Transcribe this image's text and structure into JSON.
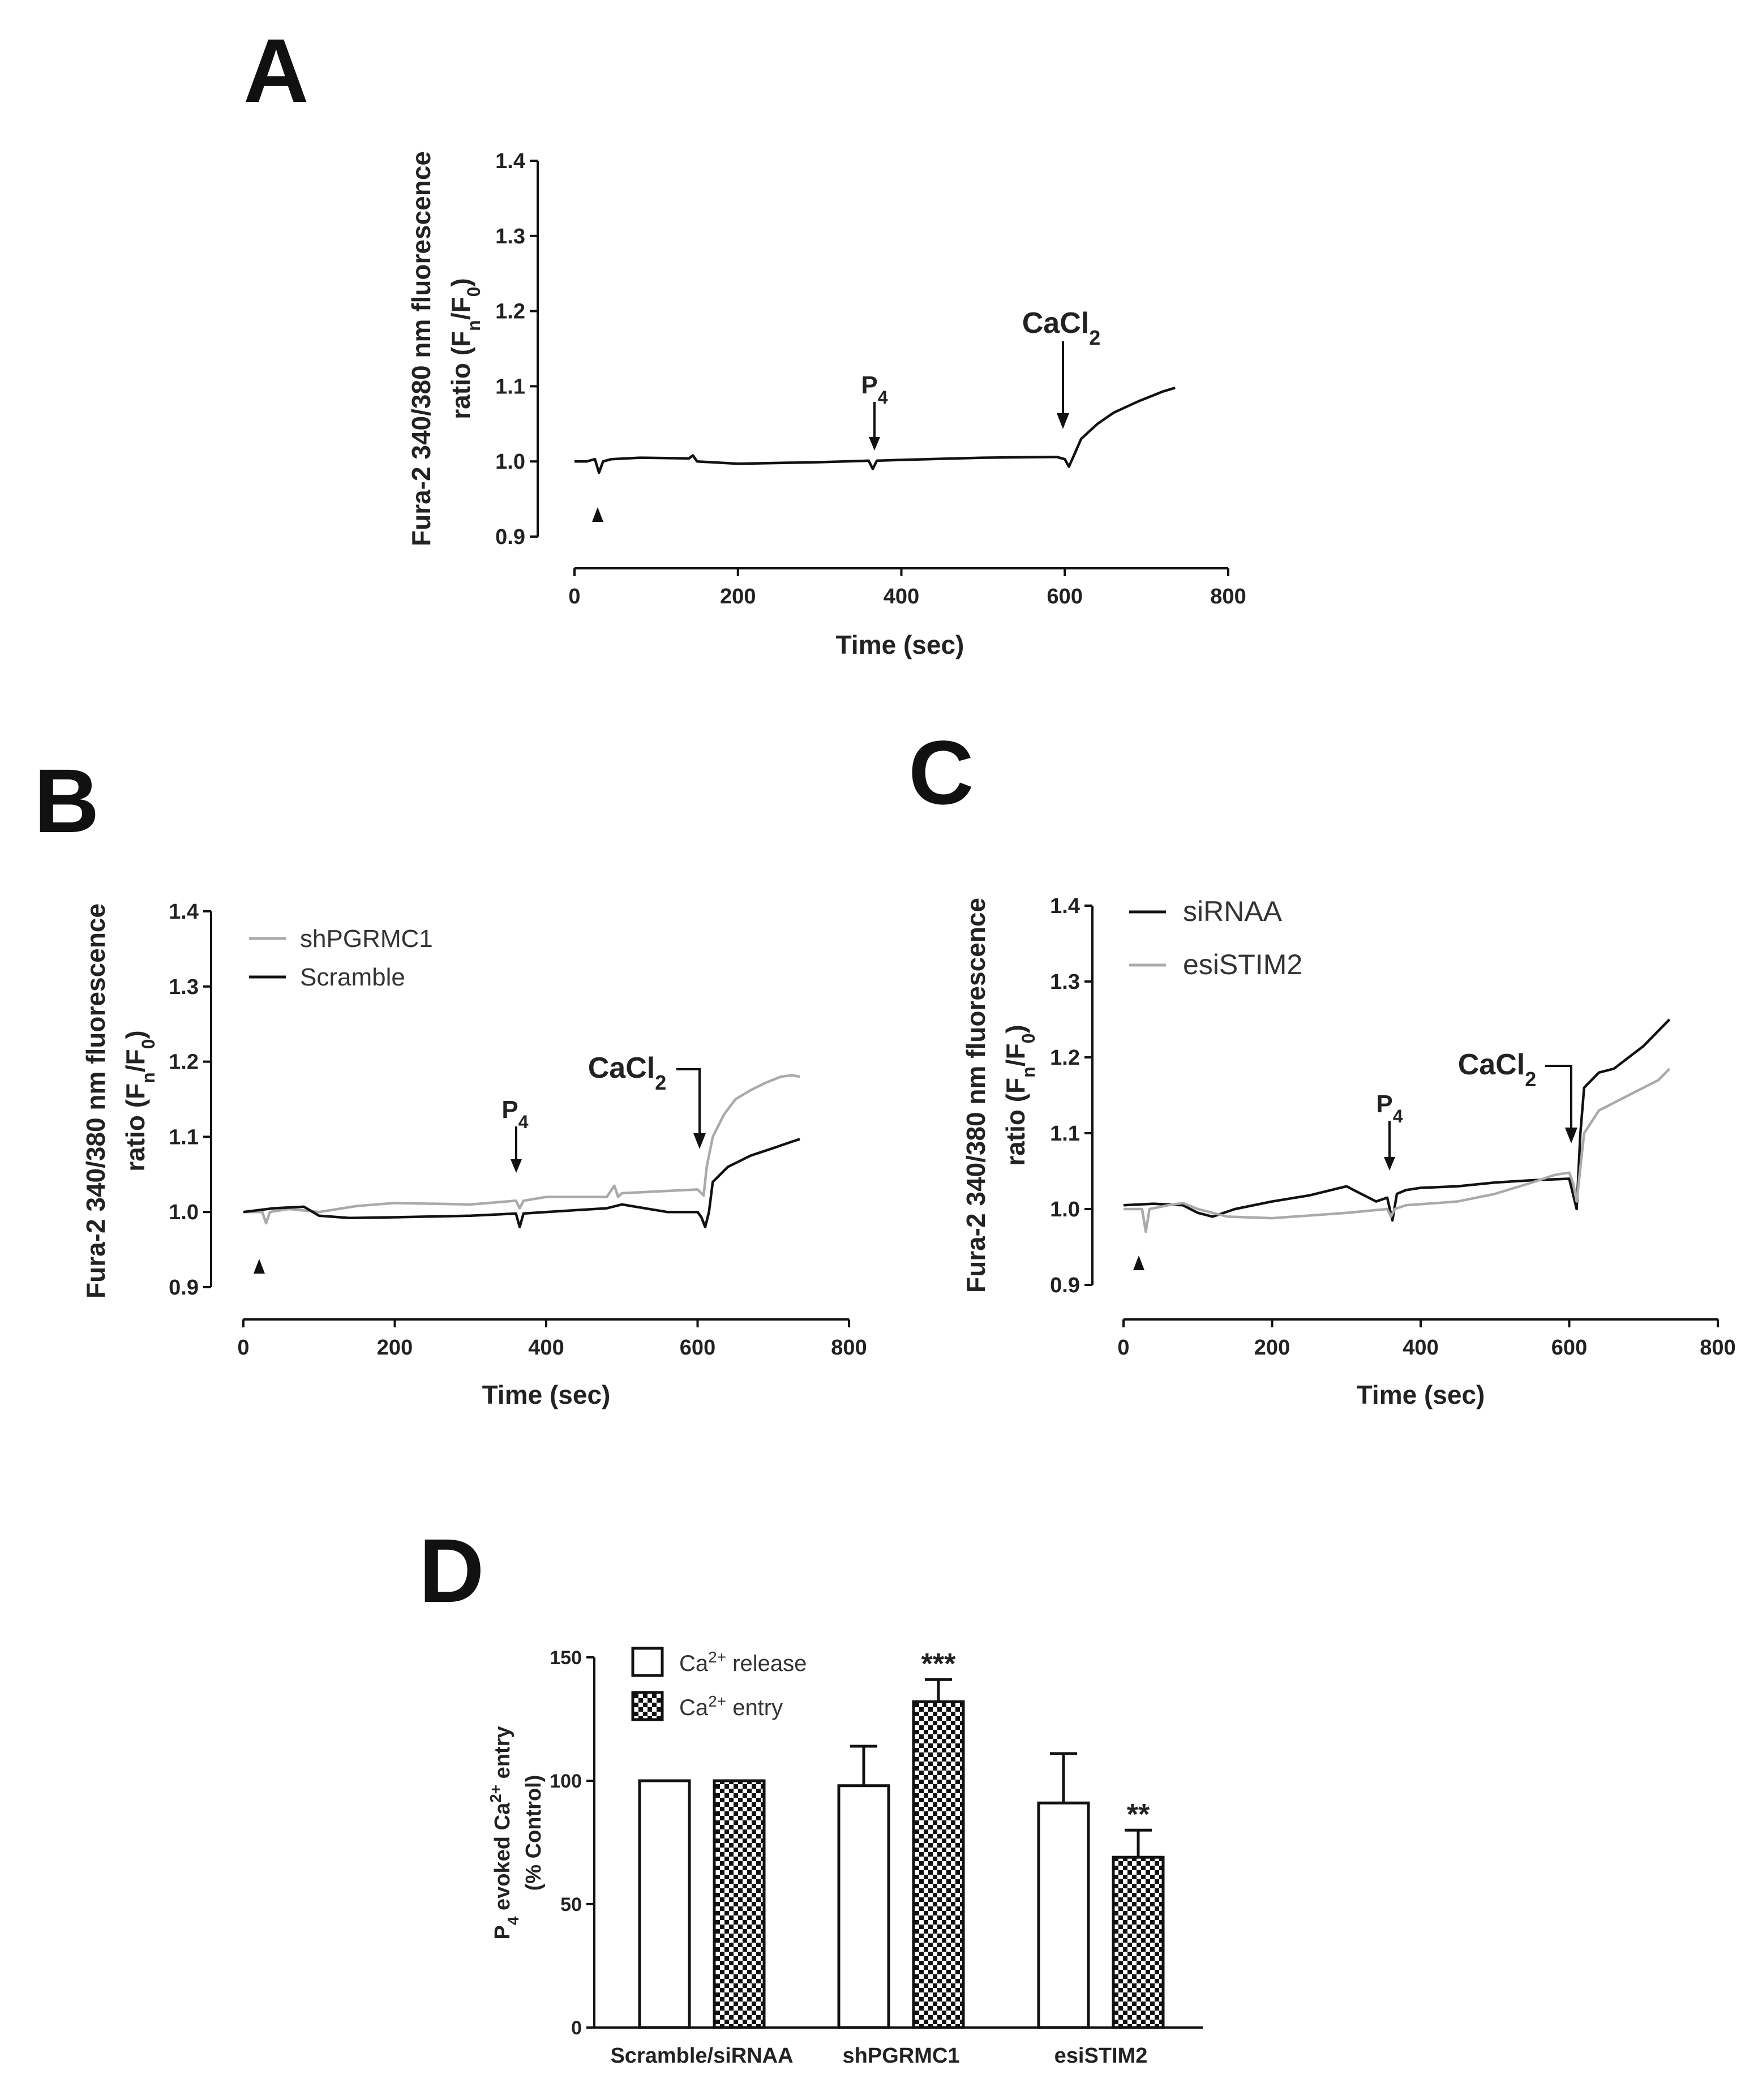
{
  "colors": {
    "black_trace": "#111111",
    "gray_trace": "#aaaaaa",
    "axis": "#111111"
  },
  "panels": {
    "A": {
      "letter": "A"
    },
    "B": {
      "letter": "B"
    },
    "C": {
      "letter": "C"
    },
    "D": {
      "letter": "D"
    }
  },
  "annotations": {
    "cacl2": "CaCl",
    "cacl2_sub": "2",
    "p4": "P",
    "p4_sub": "4"
  },
  "chart_data": [
    {
      "id": "A",
      "type": "line",
      "title": "",
      "xlabel": "Time (sec)",
      "ylabel_line1": "Fura-2 340/380 nm fluorescence",
      "ylabel_line2_pre": "ratio  (F",
      "ylabel_line2_sub1": "n",
      "ylabel_line2_mid": "/F",
      "ylabel_line2_sub2": "0",
      "ylabel_line2_post": ")",
      "xlim": [
        0,
        800
      ],
      "ylim": [
        0.9,
        1.4
      ],
      "xticks": [
        "0",
        "200",
        "400",
        "600",
        "800"
      ],
      "yticks": [
        "0.9",
        "1.0",
        "1.1",
        "1.2",
        "1.3",
        "1.4"
      ],
      "markers": [
        {
          "label": "triangle",
          "x": 30
        },
        {
          "label": "P4",
          "x": 365
        },
        {
          "label": "CaCl2",
          "x": 605
        }
      ],
      "series": [
        {
          "name": "trace",
          "color": "#111111",
          "x": [
            0,
            15,
            25,
            30,
            35,
            45,
            80,
            140,
            145,
            150,
            200,
            300,
            360,
            365,
            370,
            400,
            500,
            590,
            600,
            605,
            612,
            620,
            640,
            660,
            690,
            720,
            735
          ],
          "y": [
            1.0,
            1.0,
            1.003,
            0.985,
            1.0,
            1.003,
            1.005,
            1.004,
            1.008,
            1.0,
            0.997,
            0.999,
            1.001,
            0.99,
            1.001,
            1.002,
            1.005,
            1.006,
            1.003,
            0.993,
            1.01,
            1.03,
            1.05,
            1.065,
            1.08,
            1.093,
            1.098
          ]
        }
      ]
    },
    {
      "id": "B",
      "type": "line",
      "xlabel": "Time (sec)",
      "ylabel_line1": "Fura-2 340/380 nm fluorescence",
      "ylabel_line2_pre": "ratio  (F",
      "ylabel_line2_sub1": "n",
      "ylabel_line2_mid": "/F",
      "ylabel_line2_sub2": "0",
      "ylabel_line2_post": ")",
      "xlim": [
        0,
        800
      ],
      "ylim": [
        0.9,
        1.4
      ],
      "xticks": [
        "0",
        "200",
        "400",
        "600",
        "800"
      ],
      "yticks": [
        "0.9",
        "1.0",
        "1.1",
        "1.2",
        "1.3",
        "1.4"
      ],
      "legend": [
        "shPGRMC1",
        "Scramble"
      ],
      "markers": [
        {
          "label": "triangle",
          "x": 22
        },
        {
          "label": "P4",
          "x": 365
        },
        {
          "label": "CaCl2",
          "x": 605
        }
      ],
      "series": [
        {
          "name": "shPGRMC1",
          "color": "#aaaaaa",
          "x": [
            0,
            25,
            30,
            35,
            60,
            100,
            150,
            200,
            300,
            360,
            365,
            370,
            400,
            480,
            490,
            495,
            500,
            560,
            600,
            608,
            612,
            620,
            635,
            650,
            670,
            690,
            710,
            725,
            735
          ],
          "y": [
            1.0,
            1.0,
            0.985,
            1.0,
            1.004,
            1.0,
            1.008,
            1.012,
            1.01,
            1.015,
            1.005,
            1.015,
            1.02,
            1.02,
            1.035,
            1.02,
            1.025,
            1.028,
            1.03,
            1.022,
            1.06,
            1.1,
            1.13,
            1.15,
            1.162,
            1.172,
            1.18,
            1.182,
            1.18
          ]
        },
        {
          "name": "Scramble",
          "color": "#111111",
          "x": [
            0,
            40,
            80,
            100,
            140,
            200,
            300,
            360,
            365,
            370,
            400,
            480,
            500,
            560,
            600,
            605,
            610,
            615,
            620,
            640,
            670,
            700,
            720,
            735
          ],
          "y": [
            1.0,
            1.005,
            1.007,
            0.995,
            0.992,
            0.993,
            0.995,
            0.998,
            0.98,
            0.998,
            1.0,
            1.005,
            1.01,
            1.0,
            1.0,
            0.993,
            0.98,
            1.0,
            1.04,
            1.06,
            1.075,
            1.085,
            1.092,
            1.097
          ]
        }
      ]
    },
    {
      "id": "C",
      "type": "line",
      "xlabel": "Time (sec)",
      "ylabel_line1": "Fura-2 340/380 nm fluorescence",
      "ylabel_line2_pre": "ratio  (F",
      "ylabel_line2_sub1": "n",
      "ylabel_line2_mid": "/F",
      "ylabel_line2_sub2": "0",
      "ylabel_line2_post": ")",
      "xlim": [
        0,
        800
      ],
      "ylim": [
        0.9,
        1.4
      ],
      "xticks": [
        "0",
        "200",
        "400",
        "600",
        "800"
      ],
      "yticks": [
        "0.9",
        "1.0",
        "1.1",
        "1.2",
        "1.3",
        "1.4"
      ],
      "legend": [
        "siRNAA",
        "esiSTIM2"
      ],
      "markers": [
        {
          "label": "triangle",
          "x": 22
        },
        {
          "label": "P4",
          "x": 360
        },
        {
          "label": "CaCl2",
          "x": 605
        }
      ],
      "series": [
        {
          "name": "siRNAA",
          "color": "#111111",
          "x": [
            0,
            40,
            80,
            100,
            120,
            150,
            200,
            250,
            300,
            320,
            340,
            355,
            362,
            368,
            380,
            400,
            450,
            500,
            550,
            600,
            605,
            610,
            615,
            620,
            640,
            660,
            680,
            700,
            720,
            735
          ],
          "y": [
            1.005,
            1.007,
            1.005,
            0.995,
            0.99,
            1.0,
            1.01,
            1.018,
            1.03,
            1.02,
            1.01,
            1.015,
            0.985,
            1.02,
            1.025,
            1.028,
            1.03,
            1.035,
            1.038,
            1.04,
            1.02,
            1.0,
            1.1,
            1.16,
            1.18,
            1.185,
            1.2,
            1.215,
            1.235,
            1.25
          ]
        },
        {
          "name": "esiSTIM2",
          "color": "#aaaaaa",
          "x": [
            0,
            25,
            30,
            35,
            60,
            80,
            100,
            140,
            200,
            300,
            355,
            360,
            365,
            380,
            450,
            500,
            550,
            580,
            600,
            605,
            610,
            620,
            640,
            660,
            690,
            720,
            735
          ],
          "y": [
            1.0,
            1.0,
            0.97,
            1.0,
            1.005,
            1.008,
            1.0,
            0.99,
            0.988,
            0.995,
            1.0,
            0.99,
            1.0,
            1.005,
            1.01,
            1.02,
            1.035,
            1.045,
            1.048,
            1.035,
            1.01,
            1.1,
            1.13,
            1.14,
            1.155,
            1.17,
            1.185
          ]
        }
      ]
    },
    {
      "id": "D",
      "type": "bar",
      "title": "",
      "xlabel": "",
      "ylabel_line1_pre": "P",
      "ylabel_line1_sub": "4",
      "ylabel_line1_post": " evoked Ca",
      "ylabel_line1_sup": "2+",
      "ylabel_line1_end": " entry",
      "ylabel_line2": "(% Control)",
      "ylim": [
        0,
        150
      ],
      "yticks": [
        "0",
        "50",
        "100",
        "150"
      ],
      "categories": [
        "Scramble/siRNAA",
        "shPGRMC1",
        "esiSTIM2"
      ],
      "legend": [
        {
          "pre": "Ca",
          "sup": "2+",
          "post": " release"
        },
        {
          "pre": "Ca",
          "sup": "2+",
          "post": " entry"
        }
      ],
      "series": [
        {
          "name": "Ca2+ release",
          "values": [
            100,
            98,
            91
          ],
          "errors": [
            0,
            16,
            20
          ]
        },
        {
          "name": "Ca2+ entry",
          "values": [
            100,
            132,
            69
          ],
          "errors": [
            0,
            9,
            11
          ]
        }
      ],
      "significance": [
        "",
        "***",
        "**"
      ]
    }
  ]
}
